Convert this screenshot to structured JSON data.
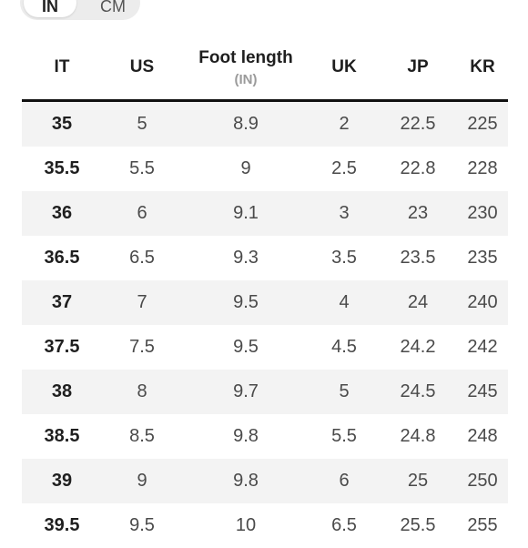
{
  "unit_toggle": {
    "options": [
      "IN",
      "CM"
    ],
    "selected": "IN"
  },
  "table": {
    "headers": {
      "it": "IT",
      "us": "US",
      "foot": "Foot length",
      "foot_unit": "(IN)",
      "uk": "UK",
      "jp": "JP",
      "kr": "KR"
    },
    "rows": [
      {
        "it": "35",
        "us": "5",
        "foot": "8.9",
        "uk": "2",
        "jp": "22.5",
        "kr": "225"
      },
      {
        "it": "35.5",
        "us": "5.5",
        "foot": "9",
        "uk": "2.5",
        "jp": "22.8",
        "kr": "228"
      },
      {
        "it": "36",
        "us": "6",
        "foot": "9.1",
        "uk": "3",
        "jp": "23",
        "kr": "230"
      },
      {
        "it": "36.5",
        "us": "6.5",
        "foot": "9.3",
        "uk": "3.5",
        "jp": "23.5",
        "kr": "235"
      },
      {
        "it": "37",
        "us": "7",
        "foot": "9.5",
        "uk": "4",
        "jp": "24",
        "kr": "240"
      },
      {
        "it": "37.5",
        "us": "7.5",
        "foot": "9.5",
        "uk": "4.5",
        "jp": "24.2",
        "kr": "242"
      },
      {
        "it": "38",
        "us": "8",
        "foot": "9.7",
        "uk": "5",
        "jp": "24.5",
        "kr": "245"
      },
      {
        "it": "38.5",
        "us": "8.5",
        "foot": "9.8",
        "uk": "5.5",
        "jp": "24.8",
        "kr": "248"
      },
      {
        "it": "39",
        "us": "9",
        "foot": "9.8",
        "uk": "6",
        "jp": "25",
        "kr": "250"
      },
      {
        "it": "39.5",
        "us": "9.5",
        "foot": "10",
        "uk": "6.5",
        "jp": "25.5",
        "kr": "255"
      }
    ]
  }
}
